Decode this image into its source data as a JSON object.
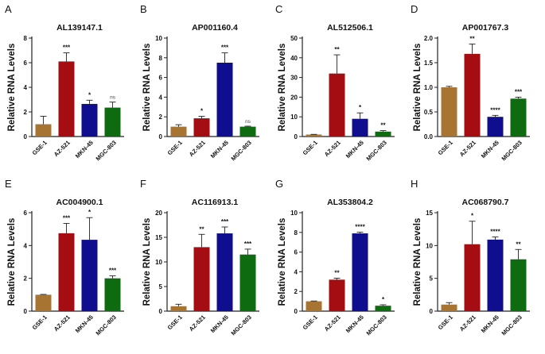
{
  "colors": {
    "GSE-1": "#a87432",
    "AZ-521": "#a40e12",
    "MKN-45": "#0f0e8f",
    "MGC-803": "#0e6b10"
  },
  "chart_data": [
    {
      "panel": "A",
      "type": "bar",
      "title": "AL139147.1",
      "ylabel": "Relative RNA Levels",
      "categories": [
        "GSE-1",
        "AZ-521",
        "MKN-45",
        "MGC-803"
      ],
      "values": [
        1.0,
        6.1,
        2.65,
        2.35
      ],
      "errors": [
        0.65,
        0.7,
        0.3,
        0.45
      ],
      "significance": [
        "",
        "***",
        "*",
        "ns"
      ],
      "ylim": [
        0,
        8
      ],
      "yticks": [
        0,
        2,
        4,
        6,
        8
      ]
    },
    {
      "panel": "B",
      "type": "bar",
      "title": "AP001160.4",
      "ylabel": "Relative RNA Levels",
      "categories": [
        "GSE-1",
        "AZ-521",
        "MKN-45",
        "MGC-803"
      ],
      "values": [
        1.0,
        1.85,
        7.5,
        1.0
      ],
      "errors": [
        0.2,
        0.2,
        1.0,
        0.05
      ],
      "significance": [
        "",
        "*",
        "***",
        "ns"
      ],
      "ylim": [
        0,
        10
      ],
      "yticks": [
        0,
        2,
        4,
        6,
        8,
        10
      ]
    },
    {
      "panel": "C",
      "type": "bar",
      "title": "AL512506.1",
      "ylabel": "Relative RNA Levels",
      "categories": [
        "GSE-1",
        "AZ-521",
        "MKN-45",
        "MGC-803"
      ],
      "values": [
        1.0,
        32.0,
        9.0,
        2.5
      ],
      "errors": [
        0.1,
        9.5,
        3.0,
        0.5
      ],
      "significance": [
        "",
        "**",
        "*",
        "**"
      ],
      "ylim": [
        0,
        50
      ],
      "yticks": [
        0,
        10,
        20,
        30,
        40,
        50
      ]
    },
    {
      "panel": "D",
      "type": "bar",
      "title": "AP001767.3",
      "ylabel": "Relative RNA Levels",
      "categories": [
        "GSE-1",
        "AZ-521",
        "MKN-45",
        "MGC-803"
      ],
      "values": [
        1.0,
        1.68,
        0.4,
        0.77
      ],
      "errors": [
        0.02,
        0.2,
        0.03,
        0.03
      ],
      "significance": [
        "",
        "**",
        "****",
        "***"
      ],
      "ylim": [
        0,
        2.0
      ],
      "yticks": [
        0,
        0.5,
        1.0,
        1.5,
        2.0
      ],
      "yticklabels": [
        "0.0",
        "0.5",
        "1.0",
        "1.5",
        "2.0"
      ]
    },
    {
      "panel": "E",
      "type": "bar",
      "title": "AC004900.1",
      "ylabel": "Relative RNA Levels",
      "categories": [
        "GSE-1",
        "AZ-521",
        "MKN-45",
        "MGC-803"
      ],
      "values": [
        1.0,
        4.75,
        4.35,
        2.0
      ],
      "errors": [
        0.02,
        0.6,
        1.35,
        0.15
      ],
      "significance": [
        "",
        "***",
        "*",
        "***"
      ],
      "ylim": [
        0,
        6
      ],
      "yticks": [
        0,
        2,
        4,
        6
      ]
    },
    {
      "panel": "F",
      "type": "bar",
      "title": "AC116913.1",
      "ylabel": "Relative RNA Levels",
      "categories": [
        "GSE-1",
        "AZ-521",
        "MKN-45",
        "MGC-803"
      ],
      "values": [
        1.0,
        13.0,
        15.8,
        11.5
      ],
      "errors": [
        0.4,
        2.6,
        1.3,
        1.1
      ],
      "significance": [
        "",
        "**",
        "***",
        "***"
      ],
      "ylim": [
        0,
        20
      ],
      "yticks": [
        0,
        5,
        10,
        15,
        20
      ]
    },
    {
      "panel": "G",
      "type": "bar",
      "title": "AL353804.2",
      "ylabel": "Relative RNA Levels",
      "categories": [
        "GSE-1",
        "AZ-521",
        "MKN-45",
        "MGC-803"
      ],
      "values": [
        1.0,
        3.2,
        7.9,
        0.55
      ],
      "errors": [
        0.03,
        0.15,
        0.12,
        0.1
      ],
      "significance": [
        "",
        "**",
        "****",
        "*"
      ],
      "ylim": [
        0,
        10
      ],
      "yticks": [
        0,
        2,
        4,
        6,
        8,
        10
      ]
    },
    {
      "panel": "H",
      "type": "bar",
      "title": "AC068790.7",
      "ylabel": "Relative RNA Levels",
      "categories": [
        "GSE-1",
        "AZ-521",
        "MKN-45",
        "MGC-803"
      ],
      "values": [
        1.0,
        10.2,
        10.9,
        7.9
      ],
      "errors": [
        0.3,
        3.5,
        0.4,
        1.5
      ],
      "significance": [
        "",
        "*",
        "****",
        "**"
      ],
      "ylim": [
        0,
        15
      ],
      "yticks": [
        0,
        5,
        10,
        15
      ]
    }
  ]
}
